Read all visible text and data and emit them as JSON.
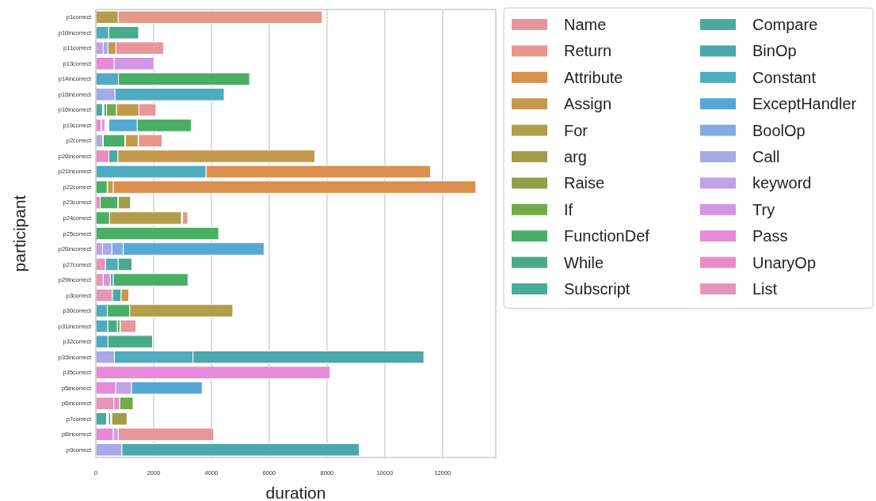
{
  "chart_data": {
    "type": "bar",
    "orientation": "horizontal",
    "xlabel": "duration",
    "ylabel": "participant",
    "categories": [
      "p1correct",
      "p10incorrect",
      "p11correct",
      "p13correct",
      "p14incorrect",
      "p15incorrect",
      "p16incorrect",
      "p19correct",
      "p2correct",
      "p20incorrect",
      "p21incorrect",
      "p22correct",
      "p23correct",
      "p24correct",
      "p25correct",
      "p26incorrect",
      "p27correct",
      "p29incorrect",
      "p3correct",
      "p30correct",
      "p31incorrect",
      "p32correct",
      "p33incorrect",
      "p35correct",
      "p5incorrect",
      "p6incorrect",
      "p7correct",
      "p8incorrect",
      "p9correct"
    ],
    "xlim": [
      0,
      13840
    ],
    "xticks": [
      0,
      2000,
      4000,
      6000,
      8000,
      10000,
      12000
    ],
    "grid": "x",
    "legend": "top right",
    "series": [
      {
        "name": "Name",
        "color": "#e8959c",
        "values": [
          null,
          null,
          1650,
          null,
          null,
          null,
          590,
          null,
          null,
          null,
          null,
          null,
          null,
          null,
          null,
          null,
          null,
          null,
          null,
          null,
          540,
          null,
          null,
          null,
          null,
          null,
          null,
          3310,
          null
        ],
        "base": [
          null,
          null,
          690,
          null,
          null,
          null,
          1490,
          null,
          null,
          null,
          null,
          null,
          null,
          null,
          null,
          null,
          null,
          null,
          null,
          null,
          850,
          null,
          null,
          null,
          null,
          null,
          null,
          770,
          null
        ]
      },
      {
        "name": "Return",
        "color": "#e7988a",
        "values": [
          7060,
          null,
          null,
          null,
          null,
          null,
          null,
          null,
          810,
          null,
          null,
          null,
          null,
          180,
          null,
          null,
          null,
          null,
          null,
          null,
          null,
          null,
          null,
          null,
          null,
          null,
          null,
          null,
          null
        ],
        "base": [
          770,
          null,
          null,
          null,
          null,
          null,
          null,
          null,
          1480,
          null,
          null,
          null,
          null,
          3000,
          null,
          null,
          null,
          null,
          null,
          null,
          null,
          null,
          null,
          null,
          null,
          null,
          null,
          null,
          null
        ]
      },
      {
        "name": "Attribute",
        "color": "#db8f4e",
        "values": [
          null,
          null,
          null,
          null,
          null,
          null,
          null,
          null,
          null,
          null,
          7770,
          12550,
          null,
          null,
          null,
          null,
          null,
          null,
          null,
          null,
          null,
          null,
          null,
          null,
          null,
          null,
          null,
          null,
          null
        ],
        "base": [
          null,
          null,
          null,
          null,
          null,
          null,
          null,
          null,
          null,
          null,
          3810,
          600,
          null,
          null,
          null,
          null,
          null,
          null,
          null,
          null,
          null,
          null,
          null,
          null,
          null,
          null,
          null,
          null,
          null
        ]
      },
      {
        "name": "Assign",
        "color": "#c4994c",
        "values": [
          null,
          null,
          270,
          null,
          null,
          null,
          780,
          null,
          430,
          6820,
          null,
          190,
          null,
          null,
          null,
          null,
          null,
          null,
          270,
          null,
          null,
          null,
          null,
          null,
          null,
          null,
          null,
          null,
          null
        ],
        "base": [
          null,
          null,
          420,
          null,
          null,
          null,
          710,
          null,
          1030,
          760,
          null,
          410,
          null,
          null,
          null,
          null,
          null,
          null,
          870,
          null,
          null,
          null,
          null,
          null,
          null,
          null,
          null,
          null,
          null
        ]
      },
      {
        "name": "For",
        "color": "#b29d4b",
        "values": [
          770,
          null,
          null,
          null,
          null,
          null,
          null,
          null,
          null,
          null,
          null,
          null,
          null,
          2490,
          null,
          null,
          null,
          null,
          null,
          3570,
          null,
          null,
          null,
          null,
          null,
          null,
          null,
          null,
          null
        ],
        "base": [
          0,
          null,
          null,
          null,
          null,
          null,
          null,
          null,
          null,
          null,
          null,
          null,
          null,
          470,
          null,
          null,
          null,
          null,
          null,
          1170,
          null,
          null,
          null,
          null,
          null,
          null,
          null,
          null,
          null
        ]
      },
      {
        "name": "arg",
        "color": "#a29e48",
        "values": [
          null,
          null,
          null,
          null,
          null,
          null,
          null,
          null,
          null,
          null,
          null,
          null,
          420,
          null,
          null,
          null,
          null,
          null,
          null,
          null,
          null,
          null,
          null,
          null,
          null,
          null,
          530,
          null,
          null
        ],
        "base": [
          null,
          null,
          null,
          null,
          null,
          null,
          null,
          null,
          null,
          null,
          null,
          null,
          780,
          null,
          null,
          null,
          null,
          null,
          null,
          null,
          null,
          null,
          null,
          null,
          null,
          null,
          550,
          null,
          null
        ]
      },
      {
        "name": "Raise",
        "color": "#93a049",
        "values": [
          null,
          null,
          null,
          null,
          null,
          null,
          null,
          null,
          null,
          null,
          null,
          null,
          null,
          null,
          null,
          null,
          null,
          null,
          null,
          null,
          null,
          null,
          null,
          null,
          null,
          null,
          null,
          null,
          null
        ]
      },
      {
        "name": "If",
        "color": "#74ab48",
        "values": [
          null,
          null,
          null,
          null,
          null,
          null,
          340,
          null,
          null,
          null,
          null,
          null,
          null,
          null,
          null,
          null,
          null,
          null,
          null,
          null,
          null,
          null,
          null,
          null,
          null,
          470,
          null,
          null,
          null
        ],
        "base": [
          null,
          null,
          null,
          null,
          null,
          null,
          370,
          null,
          null,
          null,
          null,
          null,
          null,
          null,
          null,
          null,
          null,
          null,
          null,
          null,
          null,
          null,
          null,
          null,
          null,
          820,
          null,
          null,
          null
        ]
      },
      {
        "name": "FunctionDef",
        "color": "#4aae66",
        "values": [
          null,
          null,
          null,
          null,
          4540,
          null,
          null,
          1870,
          740,
          null,
          null,
          390,
          610,
          470,
          4250,
          null,
          null,
          2590,
          null,
          770,
          90,
          null,
          null,
          null,
          null,
          null,
          70,
          null,
          null
        ],
        "base": [
          null,
          null,
          null,
          null,
          780,
          null,
          null,
          1430,
          260,
          null,
          null,
          0,
          150,
          0,
          0,
          null,
          null,
          600,
          null,
          400,
          740,
          null,
          null,
          null,
          null,
          null,
          440,
          null,
          null
        ]
      },
      {
        "name": "While",
        "color": "#4aab8a",
        "values": [
          null,
          1040,
          null,
          null,
          null,
          null,
          90,
          null,
          null,
          null,
          null,
          null,
          null,
          null,
          null,
          null,
          480,
          null,
          null,
          null,
          330,
          1540,
          null,
          null,
          null,
          null,
          null,
          null,
          null
        ],
        "base": [
          null,
          440,
          null,
          null,
          null,
          null,
          280,
          null,
          null,
          null,
          null,
          null,
          null,
          null,
          null,
          null,
          770,
          null,
          null,
          null,
          410,
          420,
          null,
          null,
          null,
          null,
          null,
          null,
          null
        ]
      },
      {
        "name": "Subscript",
        "color": "#4aaa9b",
        "values": [
          null,
          null,
          null,
          null,
          null,
          null,
          null,
          null,
          null,
          null,
          null,
          null,
          null,
          null,
          null,
          null,
          null,
          null,
          null,
          null,
          null,
          null,
          null,
          null,
          null,
          null,
          370,
          null,
          null
        ],
        "base": [
          null,
          null,
          null,
          null,
          null,
          null,
          null,
          null,
          null,
          null,
          null,
          null,
          null,
          null,
          null,
          null,
          null,
          null,
          null,
          null,
          null,
          null,
          null,
          null,
          null,
          null,
          0,
          null,
          null
        ]
      },
      {
        "name": "Compare",
        "color": "#4aaaa2",
        "values": [
          null,
          null,
          null,
          null,
          null,
          null,
          230,
          null,
          null,
          310,
          null,
          null,
          null,
          null,
          null,
          null,
          null,
          null,
          300,
          null,
          null,
          null,
          null,
          null,
          null,
          null,
          null,
          null,
          null
        ],
        "base": [
          null,
          null,
          null,
          null,
          null,
          null,
          0,
          null,
          null,
          450,
          null,
          null,
          null,
          null,
          null,
          null,
          null,
          null,
          570,
          null,
          null,
          null,
          null,
          null,
          null,
          null,
          null,
          null,
          null
        ]
      },
      {
        "name": "BinOp",
        "color": "#4ba8ac",
        "values": [
          null,
          null,
          null,
          null,
          null,
          null,
          null,
          null,
          null,
          null,
          null,
          null,
          null,
          null,
          null,
          null,
          null,
          null,
          null,
          null,
          null,
          null,
          7990,
          null,
          null,
          null,
          null,
          null,
          8210
        ],
        "base": [
          null,
          null,
          null,
          null,
          null,
          null,
          null,
          null,
          null,
          null,
          null,
          null,
          null,
          null,
          null,
          null,
          null,
          null,
          null,
          null,
          null,
          null,
          3360,
          null,
          null,
          null,
          null,
          null,
          900
        ]
      },
      {
        "name": "Constant",
        "color": "#4facbe",
        "values": [
          null,
          440,
          null,
          null,
          780,
          3780,
          null,
          null,
          null,
          null,
          3810,
          null,
          null,
          null,
          null,
          null,
          440,
          100,
          null,
          400,
          410,
          420,
          2720,
          null,
          null,
          null,
          null,
          null,
          null
        ],
        "base": [
          null,
          0,
          null,
          null,
          0,
          660,
          null,
          null,
          null,
          null,
          0,
          null,
          null,
          null,
          null,
          null,
          330,
          500,
          null,
          0,
          0,
          0,
          640,
          null,
          null,
          null,
          null,
          null,
          null
        ]
      },
      {
        "name": "ExceptHandler",
        "color": "#53a9d3",
        "values": [
          null,
          null,
          null,
          null,
          null,
          null,
          null,
          980,
          null,
          null,
          null,
          null,
          null,
          null,
          null,
          4870,
          null,
          null,
          null,
          null,
          null,
          null,
          null,
          null,
          2450,
          null,
          null,
          null,
          null
        ],
        "base": [
          null,
          null,
          null,
          null,
          null,
          null,
          null,
          450,
          null,
          null,
          null,
          null,
          null,
          null,
          null,
          950,
          null,
          null,
          null,
          null,
          null,
          null,
          null,
          null,
          1230,
          null,
          null,
          null,
          null
        ]
      },
      {
        "name": "BoolOp",
        "color": "#83abe2",
        "values": [
          null,
          null,
          null,
          null,
          null,
          null,
          null,
          null,
          null,
          null,
          null,
          null,
          null,
          null,
          null,
          400,
          null,
          null,
          null,
          null,
          null,
          null,
          null,
          null,
          null,
          null,
          null,
          null,
          null
        ],
        "base": [
          null,
          null,
          null,
          null,
          null,
          null,
          null,
          null,
          null,
          null,
          null,
          null,
          null,
          null,
          null,
          550,
          null,
          null,
          null,
          null,
          null,
          null,
          null,
          null,
          null,
          null,
          null,
          null,
          null
        ]
      },
      {
        "name": "Call",
        "color": "#a8a9e8",
        "values": [
          null,
          null,
          170,
          null,
          null,
          660,
          null,
          null,
          240,
          null,
          null,
          null,
          null,
          null,
          null,
          320,
          null,
          null,
          null,
          null,
          null,
          null,
          640,
          null,
          null,
          null,
          null,
          null,
          900
        ],
        "base": [
          null,
          null,
          250,
          null,
          null,
          0,
          null,
          null,
          0,
          null,
          null,
          null,
          null,
          null,
          null,
          230,
          null,
          null,
          null,
          null,
          null,
          null,
          0,
          null,
          null,
          null,
          null,
          null,
          0
        ]
      },
      {
        "name": "keyword",
        "color": "#c1a1e8",
        "values": [
          null,
          null,
          250,
          null,
          null,
          null,
          null,
          null,
          null,
          null,
          null,
          null,
          null,
          null,
          null,
          230,
          null,
          null,
          null,
          null,
          null,
          null,
          null,
          null,
          540,
          null,
          null,
          170,
          null
        ],
        "base": [
          null,
          null,
          0,
          null,
          null,
          null,
          null,
          null,
          null,
          null,
          null,
          null,
          null,
          null,
          null,
          0,
          null,
          null,
          null,
          null,
          null,
          null,
          null,
          null,
          690,
          null,
          null,
          600,
          null
        ]
      },
      {
        "name": "Try",
        "color": "#d595e5",
        "values": [
          null,
          null,
          null,
          1380,
          null,
          null,
          null,
          110,
          null,
          null,
          null,
          null,
          null,
          null,
          null,
          null,
          null,
          250,
          null,
          null,
          null,
          null,
          null,
          null,
          null,
          null,
          null,
          null,
          null
        ],
        "base": [
          null,
          null,
          null,
          630,
          null,
          null,
          null,
          200,
          null,
          null,
          null,
          null,
          null,
          null,
          null,
          null,
          null,
          250,
          null,
          null,
          null,
          null,
          null,
          null,
          null,
          null,
          null,
          null,
          null
        ]
      },
      {
        "name": "Pass",
        "color": "#e68ad8",
        "values": [
          null,
          null,
          null,
          630,
          null,
          null,
          null,
          180,
          null,
          null,
          null,
          null,
          null,
          null,
          null,
          null,
          null,
          null,
          null,
          null,
          null,
          null,
          null,
          8100,
          690,
          200,
          null,
          600,
          null
        ],
        "base": [
          null,
          null,
          null,
          0,
          null,
          null,
          null,
          0,
          null,
          null,
          null,
          null,
          null,
          null,
          null,
          null,
          null,
          null,
          null,
          null,
          null,
          null,
          null,
          0,
          0,
          620,
          null,
          0,
          null
        ]
      },
      {
        "name": "UnaryOp",
        "color": "#e68dc6",
        "values": [
          null,
          null,
          null,
          null,
          null,
          null,
          null,
          null,
          null,
          450,
          null,
          null,
          150,
          null,
          null,
          null,
          null,
          null,
          null,
          null,
          null,
          null,
          null,
          null,
          null,
          null,
          null,
          null,
          null
        ],
        "base": [
          null,
          null,
          null,
          null,
          null,
          null,
          null,
          null,
          null,
          0,
          null,
          null,
          0,
          null,
          null,
          null,
          null,
          null,
          null,
          null,
          null,
          null,
          null,
          null,
          null,
          null,
          null,
          null,
          null
        ]
      },
      {
        "name": "List",
        "color": "#e893ba",
        "values": [
          null,
          null,
          null,
          null,
          null,
          null,
          null,
          null,
          null,
          null,
          null,
          null,
          null,
          null,
          null,
          null,
          330,
          250,
          570,
          null,
          null,
          null,
          null,
          null,
          null,
          620,
          null,
          null,
          null
        ],
        "base": [
          null,
          null,
          null,
          null,
          null,
          null,
          null,
          null,
          null,
          null,
          null,
          null,
          null,
          null,
          null,
          null,
          0,
          0,
          0,
          null,
          null,
          null,
          null,
          null,
          null,
          0,
          null,
          null,
          null
        ]
      }
    ]
  }
}
